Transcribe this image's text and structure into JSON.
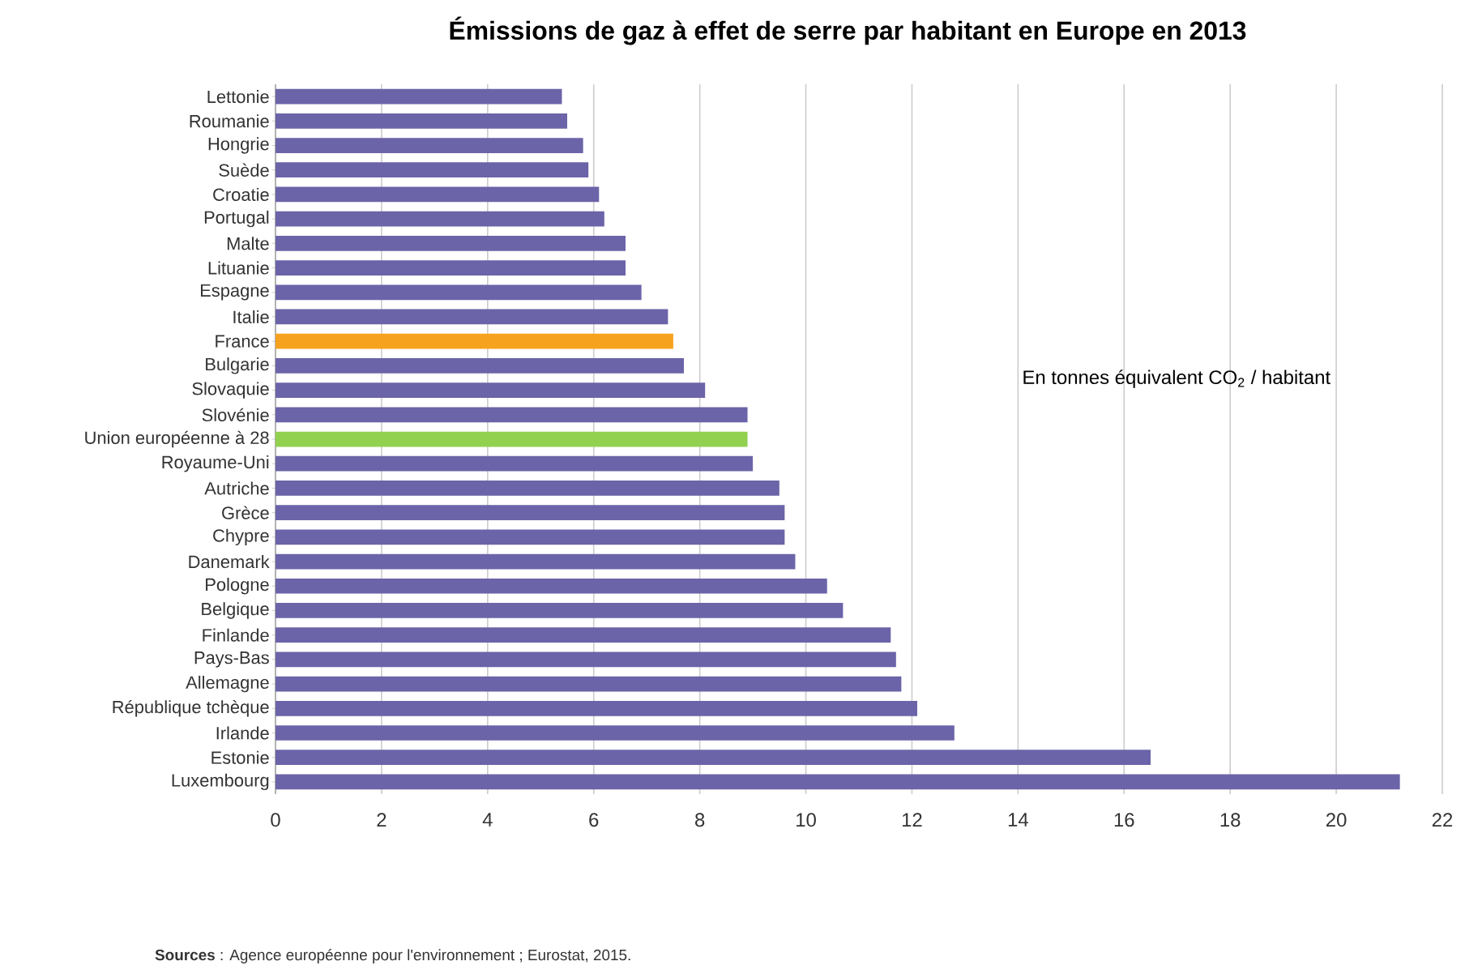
{
  "chart_data": {
    "type": "bar",
    "orientation": "horizontal",
    "title": "Émissions de gaz à effet de serre par habitant en Europe en 2013",
    "categories": [
      "Lettonie",
      "Roumanie",
      "Hongrie",
      "Suède",
      "Croatie",
      "Portugal",
      "Malte",
      "Lituanie",
      "Espagne",
      "Italie",
      "France",
      "Bulgarie",
      "Slovaquie",
      "Slovénie",
      "Union européenne à 28",
      "Royaume-Uni",
      "Autriche",
      "Grèce",
      "Chypre",
      "Danemark",
      "Pologne",
      "Belgique",
      "Finlande",
      "Pays-Bas",
      "Allemagne",
      "République tchèque",
      "Irlande",
      "Estonie",
      "Luxembourg"
    ],
    "values": [
      5.4,
      5.5,
      5.8,
      5.9,
      6.1,
      6.2,
      6.6,
      6.6,
      6.9,
      7.4,
      7.5,
      7.7,
      8.1,
      8.9,
      8.9,
      9.0,
      9.5,
      9.6,
      9.6,
      9.8,
      10.4,
      10.7,
      11.6,
      11.7,
      11.8,
      12.1,
      12.8,
      16.5,
      21.2
    ],
    "colors": [
      "#6b64a8",
      "#6b64a8",
      "#6b64a8",
      "#6b64a8",
      "#6b64a8",
      "#6b64a8",
      "#6b64a8",
      "#6b64a8",
      "#6b64a8",
      "#6b64a8",
      "#f7a21e",
      "#6b64a8",
      "#6b64a8",
      "#6b64a8",
      "#92d050",
      "#6b64a8",
      "#6b64a8",
      "#6b64a8",
      "#6b64a8",
      "#6b64a8",
      "#6b64a8",
      "#6b64a8",
      "#6b64a8",
      "#6b64a8",
      "#6b64a8",
      "#6b64a8",
      "#6b64a8",
      "#6b64a8",
      "#6b64a8"
    ],
    "xlim": [
      0,
      22
    ],
    "xticks": [
      0,
      2,
      4,
      6,
      8,
      10,
      12,
      14,
      16,
      18,
      20,
      22
    ],
    "grid": "x",
    "annotations": [
      "En tonnes équivalent CO$_{2}$ / habitant",
      "**Sources** : Agence européenne pour l'environnement ; Eurostat, 2015."
    ]
  }
}
